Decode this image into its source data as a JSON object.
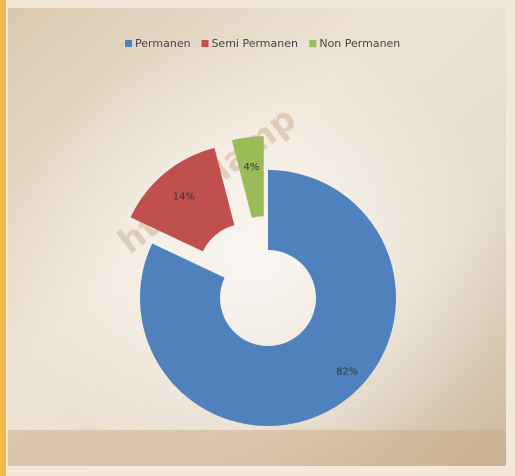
{
  "chart_data": {
    "type": "donut",
    "watermark": "http://lamp",
    "categories": [
      "Permanen",
      "Semi Permanen",
      "Non Permanen"
    ],
    "values": [
      82,
      14,
      4
    ],
    "value_labels": [
      "82%",
      "14%",
      "4%"
    ],
    "colors": [
      "#4f81bd",
      "#c0504d",
      "#9bbb59"
    ],
    "legend": "top"
  }
}
